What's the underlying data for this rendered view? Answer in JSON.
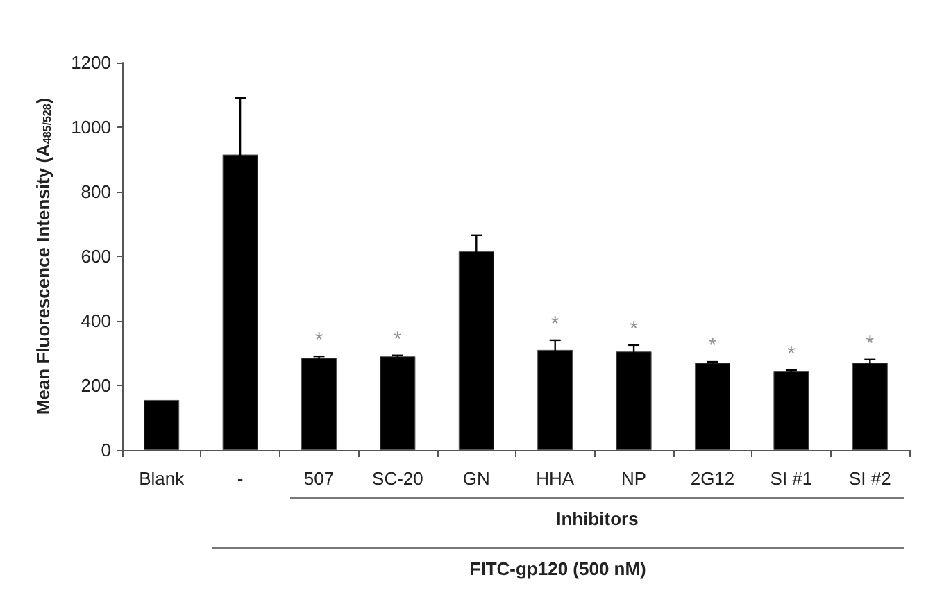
{
  "chart_data": {
    "type": "bar",
    "ylabel": "Mean Fluorescence Intensity (A$_{485/528}$)",
    "categories": [
      "Blank",
      "-",
      "507",
      "SC-20",
      "GN",
      "HHA",
      "NP",
      "2G12",
      "SI #1",
      "SI #2"
    ],
    "values": [
      155,
      915,
      285,
      290,
      615,
      310,
      305,
      270,
      245,
      270
    ],
    "errors": [
      null,
      175,
      5,
      3,
      50,
      30,
      20,
      3,
      2,
      10
    ],
    "color": "#000000",
    "ylim": [
      0,
      1200
    ],
    "yticks": [
      0,
      200,
      400,
      600,
      800,
      1000,
      1200
    ],
    "grid": false,
    "annotations": [
      {
        "text": "*",
        "x": "507",
        "y": 290
      },
      {
        "text": "*",
        "x": "SC-20",
        "y": 293
      },
      {
        "text": "*",
        "x": "HHA",
        "y": 340
      },
      {
        "text": "*",
        "x": "NP",
        "y": 325
      },
      {
        "text": "*",
        "x": "2G12",
        "y": 273
      },
      {
        "text": "*",
        "x": "SI #1",
        "y": 247
      },
      {
        "text": "*",
        "x": "SI #2",
        "y": 280
      },
      "Inhibitors",
      "FITC-gp120 (500 nM)"
    ]
  }
}
